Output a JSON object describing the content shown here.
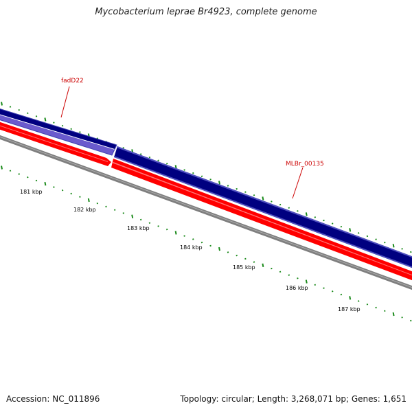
{
  "title": "Mycobacterium leprae Br4923, complete genome",
  "footer": {
    "accession": "Accession: NC_011896",
    "summary": "Topology: circular; Length: 3,268,071 bp; Genes: 1,651"
  },
  "scale": {
    "tick_labels": [
      "181 kbp",
      "182 kbp",
      "183 kbp",
      "184 kbp",
      "185 kbp",
      "186 kbp",
      "187 kbp"
    ]
  },
  "genes": [
    {
      "label": "fadD22",
      "strand": "forward",
      "color": "#6a5acd"
    },
    {
      "label": "MLBr_00135",
      "strand": "forward",
      "color": "#000080"
    },
    {
      "label": "",
      "strand": "reverse",
      "color": "#ff0000"
    }
  ],
  "colors": {
    "tick": "#1a8a1a",
    "label": "#cc0000",
    "backbone": "#808080",
    "forward_gene": "#000080",
    "forward_gene_alt": "#6a5acd",
    "reverse_gene": "#ff0000"
  }
}
